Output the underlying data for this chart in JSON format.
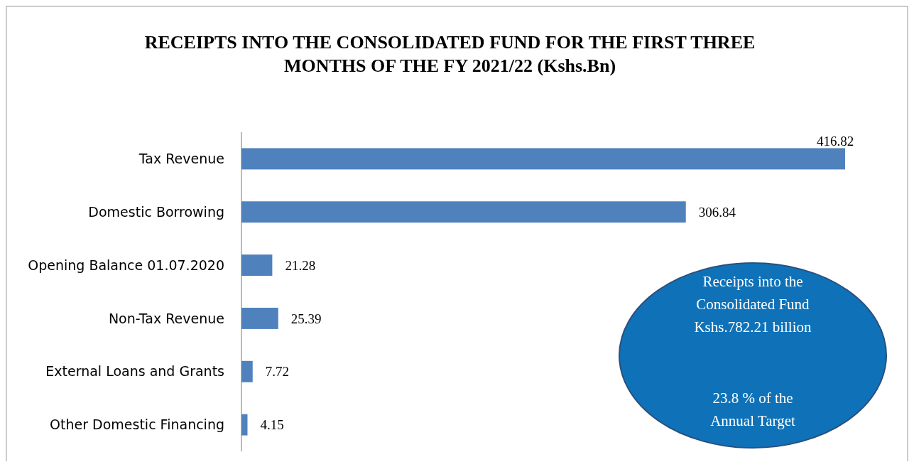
{
  "chart_data": {
    "type": "bar",
    "orientation": "horizontal",
    "title": "RECEIPTS INTO THE CONSOLIDATED FUND FOR THE FIRST THREE MONTHS OF THE FY 2021/22 (Kshs.Bn)",
    "categories": [
      "Tax Revenue",
      "Domestic Borrowing",
      "Opening Balance 01.07.2020",
      "Non-Tax Revenue",
      "External Loans and Grants",
      "Other Domestic Financing"
    ],
    "values": [
      416.82,
      306.84,
      21.28,
      25.39,
      7.72,
      4.15
    ],
    "color": "#4f81bd",
    "data_labels": true,
    "annotations": [
      "Receipts into the Consolidated Fund Kshs.782.21 billion",
      "23.8 % of the Annual Target"
    ]
  }
}
